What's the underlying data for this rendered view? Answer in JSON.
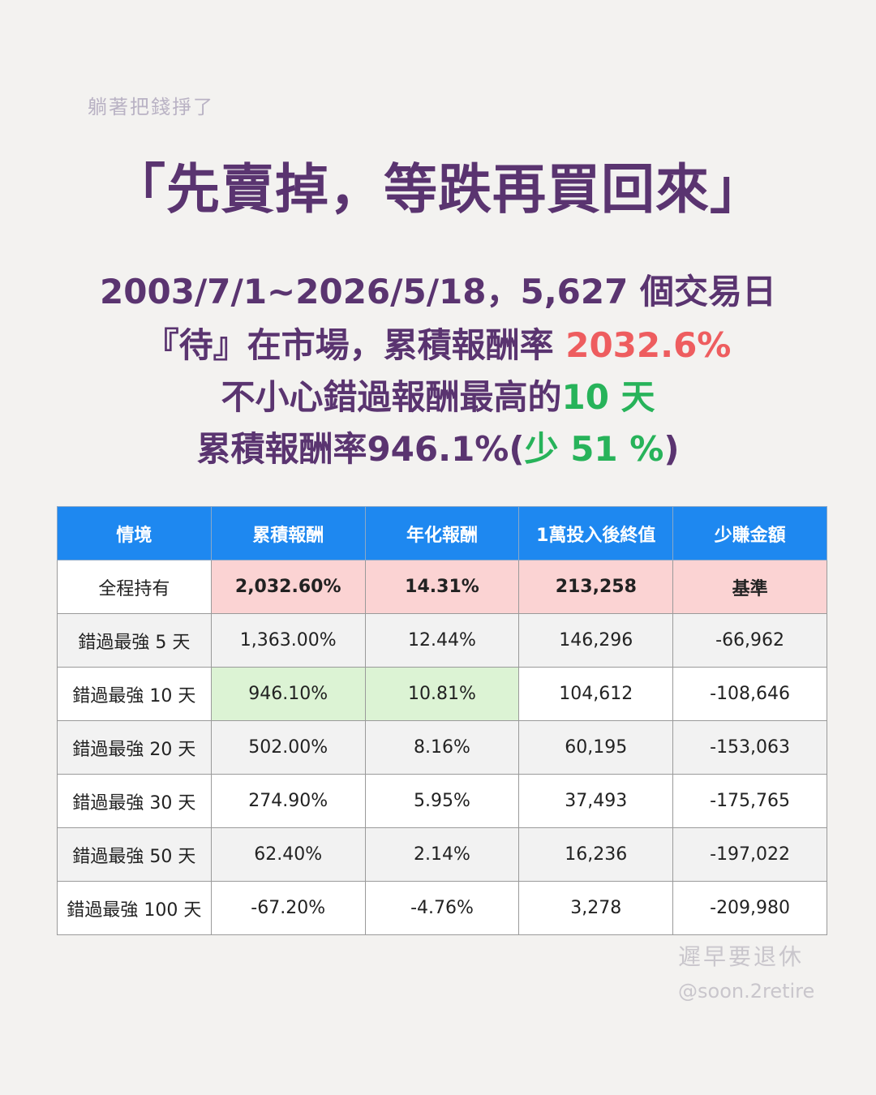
{
  "tagline": "躺著把錢掙了",
  "title": "「先賣掉，等跌再買回來」",
  "summary": {
    "line1": "2003/7/1~2026/5/18，5,627 個交易日",
    "line2_prefix": "『待』在市場，累積報酬率 ",
    "line2_value": "2032.6%",
    "line3_prefix": "不小心錯過報酬最高的",
    "line3_value": "10 天",
    "line4_prefix": "累積報酬率946.1%(",
    "line4_value": "少 51 %",
    "line4_suffix": ")"
  },
  "table": {
    "headers": [
      "情境",
      "累積報酬",
      "年化報酬",
      "1萬投入後終值",
      "少賺金額"
    ],
    "rows": [
      [
        "全程持有",
        "2,032.60%",
        "14.31%",
        "213,258",
        "基準"
      ],
      [
        "錯過最強 5 天",
        "1,363.00%",
        "12.44%",
        "146,296",
        "-66,962"
      ],
      [
        "錯過最強 10 天",
        "946.10%",
        "10.81%",
        "104,612",
        "-108,646"
      ],
      [
        "錯過最強 20 天",
        "502.00%",
        "8.16%",
        "60,195",
        "-153,063"
      ],
      [
        "錯過最強 30 天",
        "274.90%",
        "5.95%",
        "37,493",
        "-175,765"
      ],
      [
        "錯過最強 50 天",
        "62.40%",
        "2.14%",
        "16,236",
        "-197,022"
      ],
      [
        "錯過最強 100 天",
        "-67.20%",
        "-4.76%",
        "3,278",
        "-209,980"
      ]
    ]
  },
  "colors": {
    "title": "#5a3470",
    "highlight_red": "#ee5d5f",
    "highlight_green": "#27b35a",
    "header_blue": "#1e88f0",
    "row_pink": "#fbd3d3",
    "row_mint": "#dcf3d4"
  },
  "watermark": "遲早要退休",
  "handle": "@soon.2retire"
}
